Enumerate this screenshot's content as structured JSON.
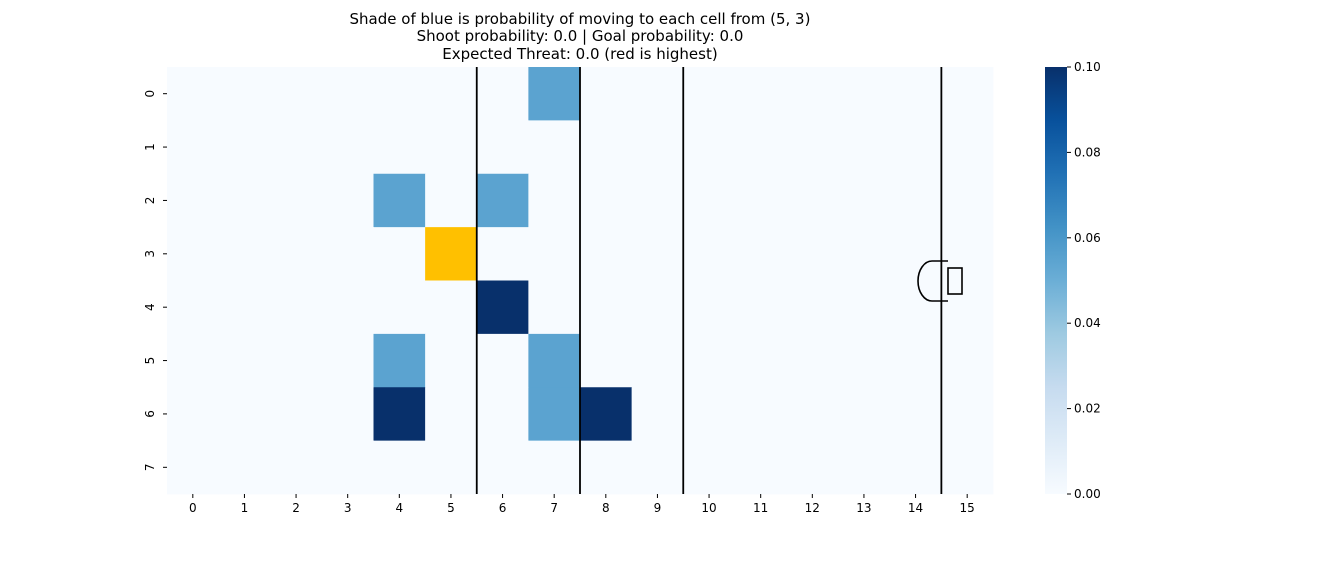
{
  "chart_data": {
    "type": "heatmap",
    "title_lines": [
      "Shade of blue is probability of moving to each cell from (5, 3)",
      "Shoot probability: 0.0 | Goal probability: 0.0",
      "Expected Threat: 0.0 (red is highest)"
    ],
    "x_ticks": [
      "0",
      "1",
      "2",
      "3",
      "4",
      "5",
      "6",
      "7",
      "8",
      "9",
      "10",
      "11",
      "12",
      "13",
      "14",
      "15"
    ],
    "y_ticks": [
      "0",
      "1",
      "2",
      "3",
      "4",
      "5",
      "6",
      "7"
    ],
    "n_cols": 16,
    "n_rows": 8,
    "values": [
      [
        0,
        0,
        0,
        0,
        0,
        0,
        0,
        0.055,
        0,
        0,
        0,
        0,
        0,
        0,
        0,
        0
      ],
      [
        0,
        0,
        0,
        0,
        0,
        0,
        0,
        0,
        0,
        0,
        0,
        0,
        0,
        0,
        0,
        0
      ],
      [
        0,
        0,
        0,
        0,
        0.055,
        0,
        0.055,
        0,
        0,
        0,
        0,
        0,
        0,
        0,
        0,
        0
      ],
      [
        0,
        0,
        0,
        0,
        0,
        0,
        0,
        0,
        0,
        0,
        0,
        0,
        0,
        0,
        0,
        0
      ],
      [
        0,
        0,
        0,
        0,
        0,
        0,
        0.1,
        0,
        0,
        0,
        0,
        0,
        0,
        0,
        0,
        0
      ],
      [
        0,
        0,
        0,
        0,
        0.055,
        0,
        0,
        0.055,
        0,
        0,
        0,
        0,
        0,
        0,
        0,
        0
      ],
      [
        0,
        0,
        0,
        0,
        0.1,
        0,
        0,
        0.055,
        0.1,
        0,
        0,
        0,
        0,
        0,
        0,
        0
      ],
      [
        0,
        0,
        0,
        0,
        0,
        0,
        0,
        0,
        0,
        0,
        0,
        0,
        0,
        0,
        0,
        0
      ]
    ],
    "current_cell": {
      "col": 5,
      "row": 3
    },
    "current_cell_color": "#ffc000",
    "colormap": "Blues",
    "colorbar_range": [
      0,
      0.1
    ],
    "colorbar_ticks": [
      "0.00",
      "0.02",
      "0.04",
      "0.06",
      "0.08",
      "0.10"
    ],
    "colors": {
      "blues_low": "#f7fbff",
      "blues_mid": "#6baed6",
      "blues_high": "#08306b"
    },
    "pitch_lines_after_col": [
      5.5,
      7.5,
      9.5,
      14.5
    ]
  }
}
